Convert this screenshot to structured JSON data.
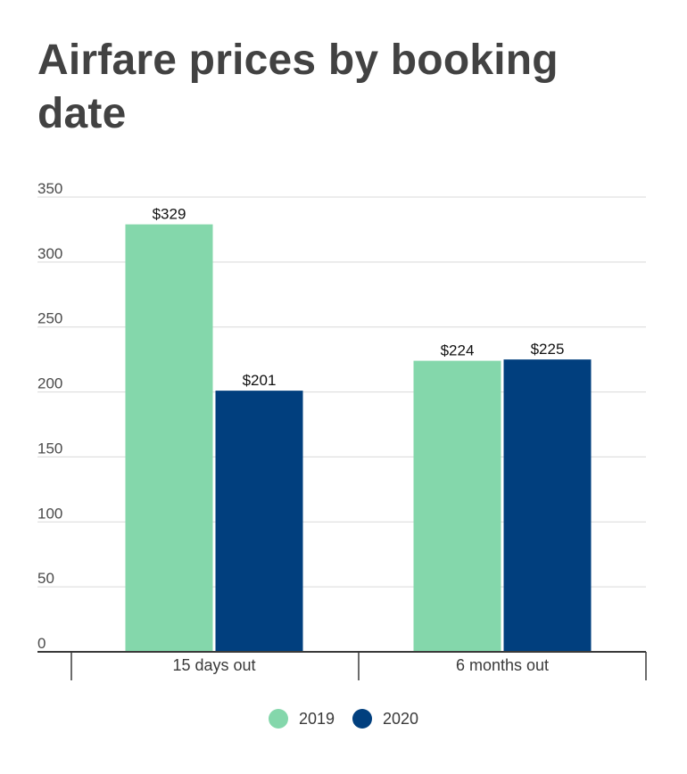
{
  "chart_data": {
    "type": "bar",
    "title": "Airfare prices by booking date",
    "categories": [
      "15 days out",
      "6 months out"
    ],
    "series": [
      {
        "name": "2019",
        "values": [
          329,
          224
        ],
        "labels": [
          "$329",
          "$224"
        ],
        "color": "#84d7ab"
      },
      {
        "name": "2020",
        "values": [
          201,
          225
        ],
        "labels": [
          "$201",
          "$225"
        ],
        "color": "#013f7e"
      }
    ],
    "y_ticks": [
      0,
      50,
      100,
      150,
      200,
      250,
      300,
      350
    ],
    "ylim": [
      0,
      350
    ],
    "grid": true,
    "legend_position": "bottom-center",
    "xlabel": "",
    "ylabel": ""
  }
}
